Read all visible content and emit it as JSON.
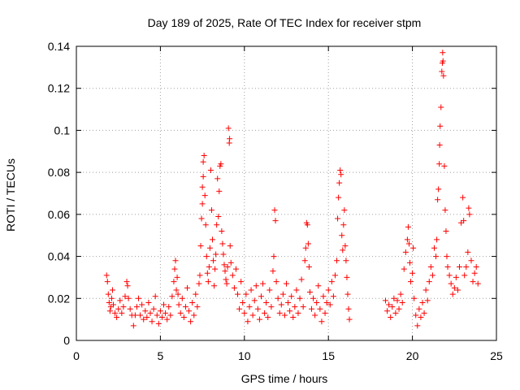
{
  "chart_data": {
    "type": "scatter",
    "title": "Day 189 of 2025, Rate Of TEC Index for receiver stpm",
    "xlabel": "GPS time / hours",
    "ylabel": "ROTI / TECUs",
    "xlim": [
      0,
      25
    ],
    "ylim": [
      0,
      0.14
    ],
    "x_ticks": [
      0,
      5,
      10,
      15,
      20,
      25
    ],
    "x_tick_labels": [
      "0",
      "5",
      "10",
      "15",
      "20",
      "25"
    ],
    "y_ticks": [
      0,
      0.02,
      0.04,
      0.06,
      0.08,
      0.1,
      0.12,
      0.14
    ],
    "y_tick_labels": [
      "0",
      "0.02",
      "0.04",
      "0.06",
      "0.08",
      "0.1",
      "0.12",
      "0.14"
    ],
    "grid": true,
    "marker": "+",
    "color": "#ff0000",
    "points": [
      [
        1.8,
        0.031
      ],
      [
        1.85,
        0.028
      ],
      [
        1.9,
        0.022
      ],
      [
        1.95,
        0.018
      ],
      [
        2.0,
        0.014
      ],
      [
        2.05,
        0.016
      ],
      [
        2.1,
        0.02
      ],
      [
        2.15,
        0.024
      ],
      [
        2.2,
        0.017
      ],
      [
        2.3,
        0.013
      ],
      [
        2.4,
        0.011
      ],
      [
        2.5,
        0.015
      ],
      [
        2.6,
        0.019
      ],
      [
        2.7,
        0.013
      ],
      [
        2.8,
        0.016
      ],
      [
        2.9,
        0.021
      ],
      [
        3.0,
        0.028
      ],
      [
        3.05,
        0.026
      ],
      [
        3.1,
        0.02
      ],
      [
        3.2,
        0.015
      ],
      [
        3.3,
        0.012
      ],
      [
        3.4,
        0.007
      ],
      [
        3.5,
        0.012
      ],
      [
        3.6,
        0.016
      ],
      [
        3.7,
        0.02
      ],
      [
        3.8,
        0.012
      ],
      [
        3.9,
        0.017
      ],
      [
        4.0,
        0.01
      ],
      [
        4.1,
        0.014
      ],
      [
        4.2,
        0.011
      ],
      [
        4.3,
        0.018
      ],
      [
        4.4,
        0.013
      ],
      [
        4.5,
        0.009
      ],
      [
        4.6,
        0.015
      ],
      [
        4.7,
        0.021
      ],
      [
        4.8,
        0.012
      ],
      [
        4.9,
        0.008
      ],
      [
        5.0,
        0.014
      ],
      [
        5.1,
        0.011
      ],
      [
        5.2,
        0.017
      ],
      [
        5.3,
        0.013
      ],
      [
        5.4,
        0.01
      ],
      [
        5.5,
        0.016
      ],
      [
        5.6,
        0.012
      ],
      [
        5.7,
        0.021
      ],
      [
        5.8,
        0.028
      ],
      [
        5.85,
        0.034
      ],
      [
        5.9,
        0.038
      ],
      [
        5.95,
        0.024
      ],
      [
        6.0,
        0.03
      ],
      [
        6.05,
        0.022
      ],
      [
        6.1,
        0.017
      ],
      [
        6.2,
        0.013
      ],
      [
        6.3,
        0.02
      ],
      [
        6.4,
        0.011
      ],
      [
        6.5,
        0.016
      ],
      [
        6.6,
        0.025
      ],
      [
        6.7,
        0.014
      ],
      [
        6.8,
        0.009
      ],
      [
        6.9,
        0.018
      ],
      [
        7.0,
        0.012
      ],
      [
        7.1,
        0.022
      ],
      [
        7.2,
        0.016
      ],
      [
        7.3,
        0.027
      ],
      [
        7.35,
        0.031
      ],
      [
        7.4,
        0.045
      ],
      [
        7.45,
        0.058
      ],
      [
        7.5,
        0.065
      ],
      [
        7.5,
        0.073
      ],
      [
        7.55,
        0.078
      ],
      [
        7.55,
        0.085
      ],
      [
        7.6,
        0.088
      ],
      [
        7.65,
        0.069
      ],
      [
        7.7,
        0.055
      ],
      [
        7.75,
        0.04
      ],
      [
        7.8,
        0.032
      ],
      [
        7.85,
        0.028
      ],
      [
        7.9,
        0.035
      ],
      [
        7.95,
        0.044
      ],
      [
        8.0,
        0.081
      ],
      [
        8.05,
        0.062
      ],
      [
        8.1,
        0.048
      ],
      [
        8.15,
        0.038
      ],
      [
        8.2,
        0.026
      ],
      [
        8.25,
        0.034
      ],
      [
        8.3,
        0.041
      ],
      [
        8.35,
        0.055
      ],
      [
        8.4,
        0.077
      ],
      [
        8.45,
        0.059
      ],
      [
        8.5,
        0.071
      ],
      [
        8.55,
        0.083
      ],
      [
        8.6,
        0.084
      ],
      [
        8.65,
        0.052
      ],
      [
        8.7,
        0.046
      ],
      [
        8.75,
        0.041
      ],
      [
        8.8,
        0.036
      ],
      [
        8.85,
        0.033
      ],
      [
        8.9,
        0.029
      ],
      [
        8.95,
        0.027
      ],
      [
        9.0,
        0.035
      ],
      [
        9.05,
        0.101
      ],
      [
        9.1,
        0.094
      ],
      [
        9.12,
        0.096
      ],
      [
        9.15,
        0.045
      ],
      [
        9.2,
        0.037
      ],
      [
        9.3,
        0.031
      ],
      [
        9.4,
        0.025
      ],
      [
        9.5,
        0.034
      ],
      [
        9.6,
        0.022
      ],
      [
        9.7,
        0.015
      ],
      [
        9.8,
        0.028
      ],
      [
        9.9,
        0.018
      ],
      [
        10.0,
        0.013
      ],
      [
        10.1,
        0.022
      ],
      [
        10.2,
        0.009
      ],
      [
        10.3,
        0.016
      ],
      [
        10.4,
        0.024
      ],
      [
        10.5,
        0.012
      ],
      [
        10.6,
        0.019
      ],
      [
        10.7,
        0.026
      ],
      [
        10.8,
        0.015
      ],
      [
        10.9,
        0.01
      ],
      [
        11.0,
        0.021
      ],
      [
        11.1,
        0.027
      ],
      [
        11.2,
        0.013
      ],
      [
        11.3,
        0.018
      ],
      [
        11.4,
        0.011
      ],
      [
        11.5,
        0.024
      ],
      [
        11.6,
        0.016
      ],
      [
        11.7,
        0.033
      ],
      [
        11.75,
        0.04
      ],
      [
        11.8,
        0.062
      ],
      [
        11.85,
        0.057
      ],
      [
        11.9,
        0.028
      ],
      [
        12.0,
        0.02
      ],
      [
        12.1,
        0.013
      ],
      [
        12.2,
        0.017
      ],
      [
        12.3,
        0.022
      ],
      [
        12.4,
        0.012
      ],
      [
        12.5,
        0.027
      ],
      [
        12.6,
        0.018
      ],
      [
        12.7,
        0.014
      ],
      [
        12.8,
        0.021
      ],
      [
        12.9,
        0.011
      ],
      [
        13.0,
        0.016
      ],
      [
        13.1,
        0.024
      ],
      [
        13.2,
        0.013
      ],
      [
        13.3,
        0.02
      ],
      [
        13.4,
        0.029
      ],
      [
        13.5,
        0.016
      ],
      [
        13.6,
        0.038
      ],
      [
        13.65,
        0.044
      ],
      [
        13.7,
        0.056
      ],
      [
        13.75,
        0.055
      ],
      [
        13.8,
        0.046
      ],
      [
        13.85,
        0.035
      ],
      [
        13.9,
        0.023
      ],
      [
        14.0,
        0.015
      ],
      [
        14.1,
        0.02
      ],
      [
        14.2,
        0.012
      ],
      [
        14.3,
        0.018
      ],
      [
        14.4,
        0.026
      ],
      [
        14.5,
        0.015
      ],
      [
        14.6,
        0.009
      ],
      [
        14.7,
        0.021
      ],
      [
        14.8,
        0.013
      ],
      [
        14.9,
        0.018
      ],
      [
        15.0,
        0.024
      ],
      [
        15.1,
        0.017
      ],
      [
        15.2,
        0.028
      ],
      [
        15.3,
        0.021
      ],
      [
        15.4,
        0.031
      ],
      [
        15.5,
        0.038
      ],
      [
        15.55,
        0.058
      ],
      [
        15.6,
        0.068
      ],
      [
        15.65,
        0.075
      ],
      [
        15.7,
        0.081
      ],
      [
        15.75,
        0.079
      ],
      [
        15.8,
        0.05
      ],
      [
        15.85,
        0.043
      ],
      [
        15.9,
        0.055
      ],
      [
        15.95,
        0.062
      ],
      [
        16.0,
        0.045
      ],
      [
        16.05,
        0.038
      ],
      [
        16.1,
        0.03
      ],
      [
        16.15,
        0.022
      ],
      [
        16.2,
        0.015
      ],
      [
        16.25,
        0.01
      ],
      [
        18.4,
        0.019
      ],
      [
        18.5,
        0.014
      ],
      [
        18.6,
        0.017
      ],
      [
        18.7,
        0.011
      ],
      [
        18.8,
        0.016
      ],
      [
        18.9,
        0.02
      ],
      [
        19.0,
        0.013
      ],
      [
        19.1,
        0.019
      ],
      [
        19.2,
        0.015
      ],
      [
        19.3,
        0.022
      ],
      [
        19.4,
        0.018
      ],
      [
        19.5,
        0.034
      ],
      [
        19.6,
        0.042
      ],
      [
        19.7,
        0.048
      ],
      [
        19.75,
        0.054
      ],
      [
        19.8,
        0.046
      ],
      [
        19.85,
        0.037
      ],
      [
        19.9,
        0.028
      ],
      [
        20.0,
        0.032
      ],
      [
        20.05,
        0.044
      ],
      [
        20.1,
        0.02
      ],
      [
        20.2,
        0.012
      ],
      [
        20.3,
        0.007
      ],
      [
        20.4,
        0.015
      ],
      [
        20.5,
        0.011
      ],
      [
        20.6,
        0.018
      ],
      [
        20.7,
        0.013
      ],
      [
        20.8,
        0.024
      ],
      [
        20.9,
        0.019
      ],
      [
        21.0,
        0.028
      ],
      [
        21.1,
        0.035
      ],
      [
        21.2,
        0.031
      ],
      [
        21.3,
        0.044
      ],
      [
        21.4,
        0.04
      ],
      [
        21.45,
        0.048
      ],
      [
        21.5,
        0.067
      ],
      [
        21.55,
        0.072
      ],
      [
        21.6,
        0.084
      ],
      [
        21.62,
        0.093
      ],
      [
        21.65,
        0.102
      ],
      [
        21.7,
        0.111
      ],
      [
        21.75,
        0.128
      ],
      [
        21.78,
        0.132
      ],
      [
        21.8,
        0.137
      ],
      [
        21.82,
        0.133
      ],
      [
        21.85,
        0.126
      ],
      [
        21.9,
        0.083
      ],
      [
        21.95,
        0.062
      ],
      [
        22.0,
        0.052
      ],
      [
        22.05,
        0.04
      ],
      [
        22.1,
        0.035
      ],
      [
        22.2,
        0.031
      ],
      [
        22.3,
        0.027
      ],
      [
        22.4,
        0.022
      ],
      [
        22.5,
        0.025
      ],
      [
        22.6,
        0.03
      ],
      [
        22.7,
        0.024
      ],
      [
        22.8,
        0.035
      ],
      [
        22.9,
        0.056
      ],
      [
        23.0,
        0.068
      ],
      [
        23.05,
        0.057
      ],
      [
        23.1,
        0.031
      ],
      [
        23.2,
        0.035
      ],
      [
        23.3,
        0.042
      ],
      [
        23.35,
        0.063
      ],
      [
        23.4,
        0.06
      ],
      [
        23.5,
        0.038
      ],
      [
        23.6,
        0.028
      ],
      [
        23.7,
        0.032
      ],
      [
        23.8,
        0.035
      ],
      [
        23.9,
        0.027
      ]
    ]
  }
}
